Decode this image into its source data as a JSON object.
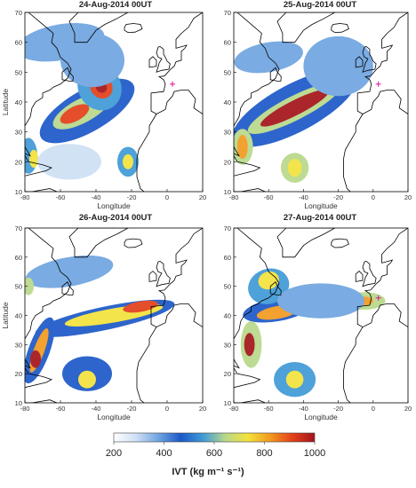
{
  "panels": [
    {
      "title": "24-Aug-2014 00UT",
      "marker": [
        3,
        46
      ]
    },
    {
      "title": "25-Aug-2014 00UT",
      "marker": [
        3,
        46
      ]
    },
    {
      "title": "26-Aug-2014 00UT",
      "marker": null
    },
    {
      "title": "27-Aug-2014 00UT",
      "marker": [
        3,
        46
      ]
    }
  ],
  "axes": {
    "xlabel": "Longitude",
    "ylabel": "Latitude",
    "lon_range": [
      -80,
      20
    ],
    "lat_range": [
      10,
      70
    ],
    "lon_ticks": [
      "-80",
      "-60",
      "-40",
      "-20",
      "0",
      "20"
    ],
    "lat_ticks": [
      "10",
      "20",
      "30",
      "40",
      "50",
      "60",
      "70"
    ]
  },
  "colorbar": {
    "range": [
      200,
      1000
    ],
    "ticks": [
      "200",
      "400",
      "600",
      "800",
      "1000"
    ],
    "title": "IVT (kg m⁻¹ s⁻¹)",
    "colors": [
      "#ffffff",
      "#cfe0f5",
      "#6fa4e0",
      "#1c58c8",
      "#3f9ad6",
      "#b8d98a",
      "#f4e23c",
      "#f29a1f",
      "#e2401a",
      "#a3141a"
    ]
  },
  "marker_color": "#e0109a"
}
